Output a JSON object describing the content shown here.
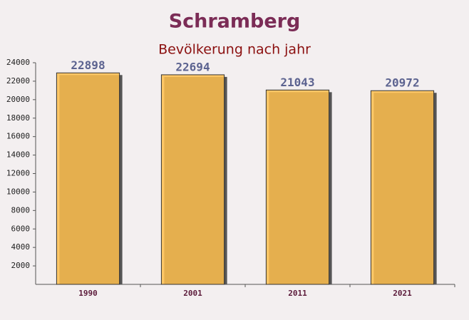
{
  "chart_data": {
    "type": "bar",
    "title": "Schramberg",
    "subtitle": "Bevölkerung nach jahr",
    "categories": [
      "1990",
      "2001",
      "2011",
      "2021"
    ],
    "values": [
      22898,
      22694,
      21043,
      20972
    ],
    "color": "#ffc04d",
    "ylim": [
      0,
      24000
    ],
    "yticks": [
      2000,
      4000,
      6000,
      8000,
      10000,
      12000,
      14000,
      16000,
      18000,
      20000,
      22000,
      24000
    ],
    "grid": false
  }
}
